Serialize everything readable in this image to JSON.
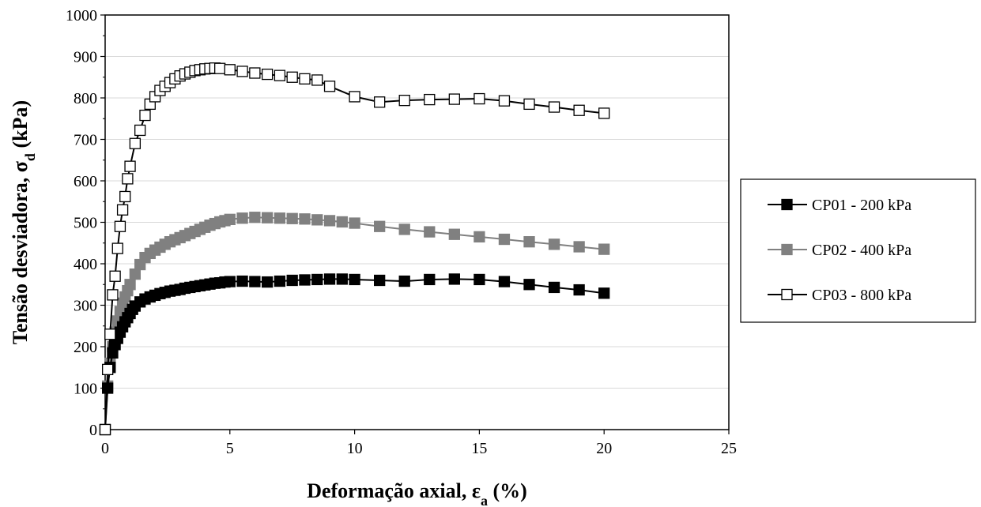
{
  "chart_data": {
    "type": "line",
    "title": "",
    "xlabel": {
      "main": "Deformação axial, ε",
      "sub": "a",
      "tail": " (%)"
    },
    "ylabel": {
      "main": "Tensão desviadora, σ",
      "sub": "d",
      "tail": " (kPa)"
    },
    "xlim": [
      0,
      25
    ],
    "ylim": [
      0,
      1000
    ],
    "xticks": [
      0,
      5,
      10,
      15,
      20,
      25
    ],
    "yticks": [
      0,
      100,
      200,
      300,
      400,
      500,
      600,
      700,
      800,
      900,
      1000
    ],
    "grid": "horizontal",
    "legend_position": "right",
    "series": [
      {
        "name": "CP01 - 200 kPa",
        "marker": "filled-square",
        "color": "#000000",
        "x": [
          0,
          0.1,
          0.2,
          0.3,
          0.4,
          0.5,
          0.6,
          0.7,
          0.8,
          0.9,
          1.0,
          1.1,
          1.2,
          1.4,
          1.6,
          1.8,
          2.0,
          2.2,
          2.4,
          2.6,
          2.8,
          3.0,
          3.2,
          3.4,
          3.6,
          3.8,
          4.0,
          4.2,
          4.4,
          4.6,
          4.8,
          5.0,
          5.5,
          6.0,
          6.5,
          7.0,
          7.5,
          8.0,
          8.5,
          9.0,
          9.5,
          10.0,
          11.0,
          12.0,
          13.0,
          14.0,
          15.0,
          16.0,
          17.0,
          18.0,
          19.0,
          20.0
        ],
        "y": [
          0,
          100,
          150,
          185,
          205,
          220,
          235,
          248,
          260,
          270,
          280,
          290,
          298,
          308,
          315,
          320,
          324,
          328,
          331,
          334,
          336,
          338,
          341,
          343,
          345,
          347,
          349,
          351,
          353,
          354,
          356,
          357,
          358,
          357,
          356,
          358,
          360,
          361,
          362,
          363,
          363,
          362,
          360,
          358,
          362,
          363,
          362,
          357,
          350,
          343,
          337,
          329
        ]
      },
      {
        "name": "CP02 - 400 kPa",
        "marker": "gray-square",
        "color": "#808080",
        "x": [
          0,
          0.1,
          0.2,
          0.3,
          0.4,
          0.5,
          0.6,
          0.7,
          0.8,
          0.9,
          1.0,
          1.2,
          1.4,
          1.6,
          1.8,
          2.0,
          2.2,
          2.4,
          2.6,
          2.8,
          3.0,
          3.2,
          3.4,
          3.6,
          3.8,
          4.0,
          4.2,
          4.4,
          4.6,
          4.8,
          5.0,
          5.5,
          6.0,
          6.5,
          7.0,
          7.5,
          8.0,
          8.5,
          9.0,
          9.5,
          10.0,
          11.0,
          12.0,
          13.0,
          14.0,
          15.0,
          16.0,
          17.0,
          18.0,
          19.0,
          20.0
        ],
        "y": [
          0,
          105,
          160,
          200,
          235,
          262,
          285,
          305,
          320,
          335,
          350,
          375,
          398,
          415,
          425,
          433,
          440,
          447,
          453,
          458,
          463,
          468,
          473,
          478,
          483,
          488,
          493,
          497,
          501,
          504,
          507,
          510,
          512,
          511,
          510,
          509,
          508,
          506,
          504,
          501,
          498,
          490,
          483,
          477,
          471,
          465,
          459,
          453,
          447,
          441,
          435
        ]
      },
      {
        "name": "CP03 - 800 kPa",
        "marker": "open-square",
        "color": "#000000",
        "x": [
          0,
          0.1,
          0.2,
          0.3,
          0.4,
          0.5,
          0.6,
          0.7,
          0.8,
          0.9,
          1.0,
          1.2,
          1.4,
          1.6,
          1.8,
          2.0,
          2.2,
          2.4,
          2.6,
          2.8,
          3.0,
          3.2,
          3.4,
          3.6,
          3.8,
          4.0,
          4.2,
          4.4,
          4.6,
          5.0,
          5.5,
          6.0,
          6.5,
          7.0,
          7.5,
          8.0,
          8.5,
          9.0,
          10.0,
          11.0,
          12.0,
          13.0,
          14.0,
          15.0,
          16.0,
          17.0,
          18.0,
          19.0,
          20.0
        ],
        "y": [
          0,
          145,
          230,
          325,
          370,
          437,
          490,
          530,
          562,
          605,
          635,
          690,
          722,
          758,
          785,
          803,
          818,
          828,
          837,
          846,
          853,
          858,
          862,
          866,
          868,
          870,
          871,
          872,
          871,
          868,
          864,
          860,
          857,
          854,
          850,
          846,
          843,
          828,
          803,
          790,
          794,
          796,
          797,
          798,
          793,
          785,
          778,
          770,
          763
        ]
      }
    ]
  }
}
